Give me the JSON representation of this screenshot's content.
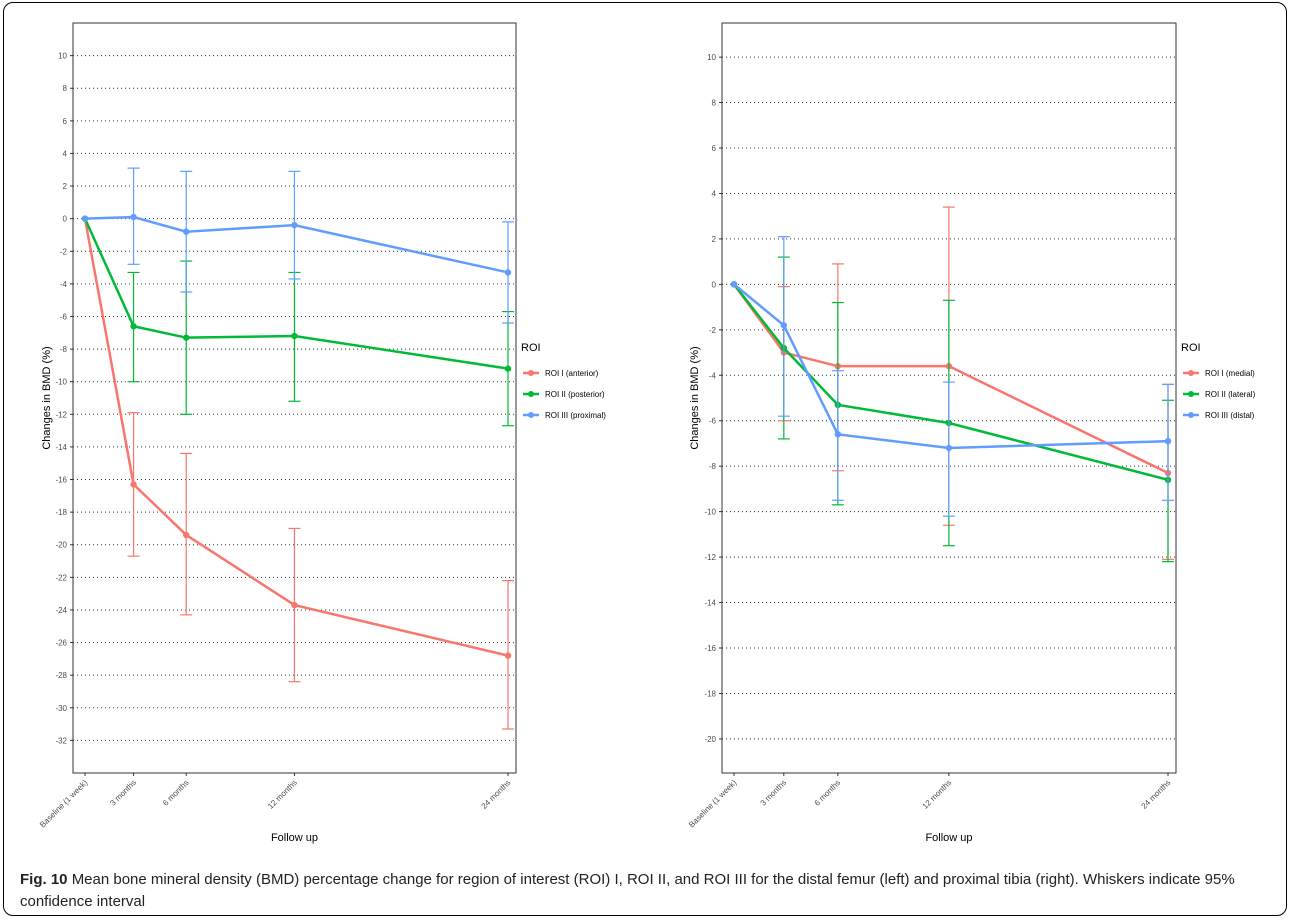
{
  "caption": {
    "label": "Fig. 10",
    "text": "Mean bone mineral density (BMD) percentage change for region of interest (ROI) I, ROI II, and ROI III for the distal femur (left) and proximal tibia (right). Whiskers indicate 95% confidence interval"
  },
  "chart_data": [
    {
      "type": "line",
      "title": "",
      "xlabel": "Follow up",
      "ylabel": "Changes in BMD (%)",
      "x": [
        "Baseline (1 week)",
        "3 months",
        "6 months",
        "12 months",
        "24 months"
      ],
      "x_days": [
        7,
        90,
        180,
        365,
        730
      ],
      "ylim": [
        -34,
        12
      ],
      "yticks": [
        10,
        8,
        6,
        4,
        2,
        0,
        -2,
        -4,
        -6,
        -8,
        -10,
        -12,
        -14,
        -16,
        -18,
        -20,
        -22,
        -24,
        -26,
        -28,
        -30,
        -32
      ],
      "grid": "horizontal dotted",
      "legend_title": "ROI",
      "legend_position": "right",
      "series": [
        {
          "name": "ROI I (anterior)",
          "color": "#F8766D",
          "values": [
            0,
            -16.3,
            -19.4,
            -23.7,
            -26.8
          ],
          "lower": [
            null,
            -20.7,
            -24.3,
            -28.4,
            -31.3
          ],
          "upper": [
            null,
            -11.9,
            -14.4,
            -19.0,
            -22.2
          ]
        },
        {
          "name": "ROI II (posterior)",
          "color": "#00BA38",
          "values": [
            0,
            -6.6,
            -7.3,
            -7.2,
            -9.2
          ],
          "lower": [
            null,
            -10.0,
            -12.0,
            -11.2,
            -12.7
          ],
          "upper": [
            null,
            -3.3,
            -2.6,
            -3.3,
            -5.7
          ]
        },
        {
          "name": "ROI III (proximal)",
          "color": "#619CFF",
          "values": [
            0,
            0.1,
            -0.8,
            -0.4,
            -3.3
          ],
          "lower": [
            null,
            -2.8,
            -4.5,
            -3.7,
            -6.4
          ],
          "upper": [
            null,
            3.1,
            2.9,
            2.9,
            -0.2
          ]
        }
      ]
    },
    {
      "type": "line",
      "title": "",
      "xlabel": "Follow up",
      "ylabel": "Changes in BMD (%)",
      "x": [
        "Baseline (1 week)",
        "3 months",
        "6 months",
        "12 months",
        "24 months"
      ],
      "x_days": [
        7,
        90,
        180,
        365,
        730
      ],
      "ylim": [
        -21.5,
        11.5
      ],
      "yticks": [
        10,
        8,
        6,
        4,
        2,
        0,
        -2,
        -4,
        -6,
        -8,
        -10,
        -12,
        -14,
        -16,
        -18,
        -20
      ],
      "grid": "horizontal dotted",
      "legend_title": "ROI",
      "legend_position": "right",
      "series": [
        {
          "name": "ROI I (medial)",
          "color": "#F8766D",
          "values": [
            0,
            -3.0,
            -3.6,
            -3.6,
            -8.3
          ],
          "lower": [
            null,
            -6.0,
            -8.2,
            -10.6,
            -12.1
          ],
          "upper": [
            null,
            -0.1,
            0.9,
            3.4,
            -4.4
          ]
        },
        {
          "name": "ROI II (lateral)",
          "color": "#00BA38",
          "values": [
            0,
            -2.8,
            -5.3,
            -6.1,
            -8.6
          ],
          "lower": [
            null,
            -6.8,
            -9.7,
            -11.5,
            -12.2
          ],
          "upper": [
            null,
            1.2,
            -0.8,
            -0.7,
            -5.1
          ]
        },
        {
          "name": "ROI III (distal)",
          "color": "#619CFF",
          "values": [
            0,
            -1.8,
            -6.6,
            -7.2,
            -6.9
          ],
          "lower": [
            null,
            -5.8,
            -9.5,
            -10.2,
            -9.5
          ],
          "upper": [
            null,
            2.1,
            -3.8,
            -4.3,
            -4.4
          ]
        }
      ]
    }
  ]
}
